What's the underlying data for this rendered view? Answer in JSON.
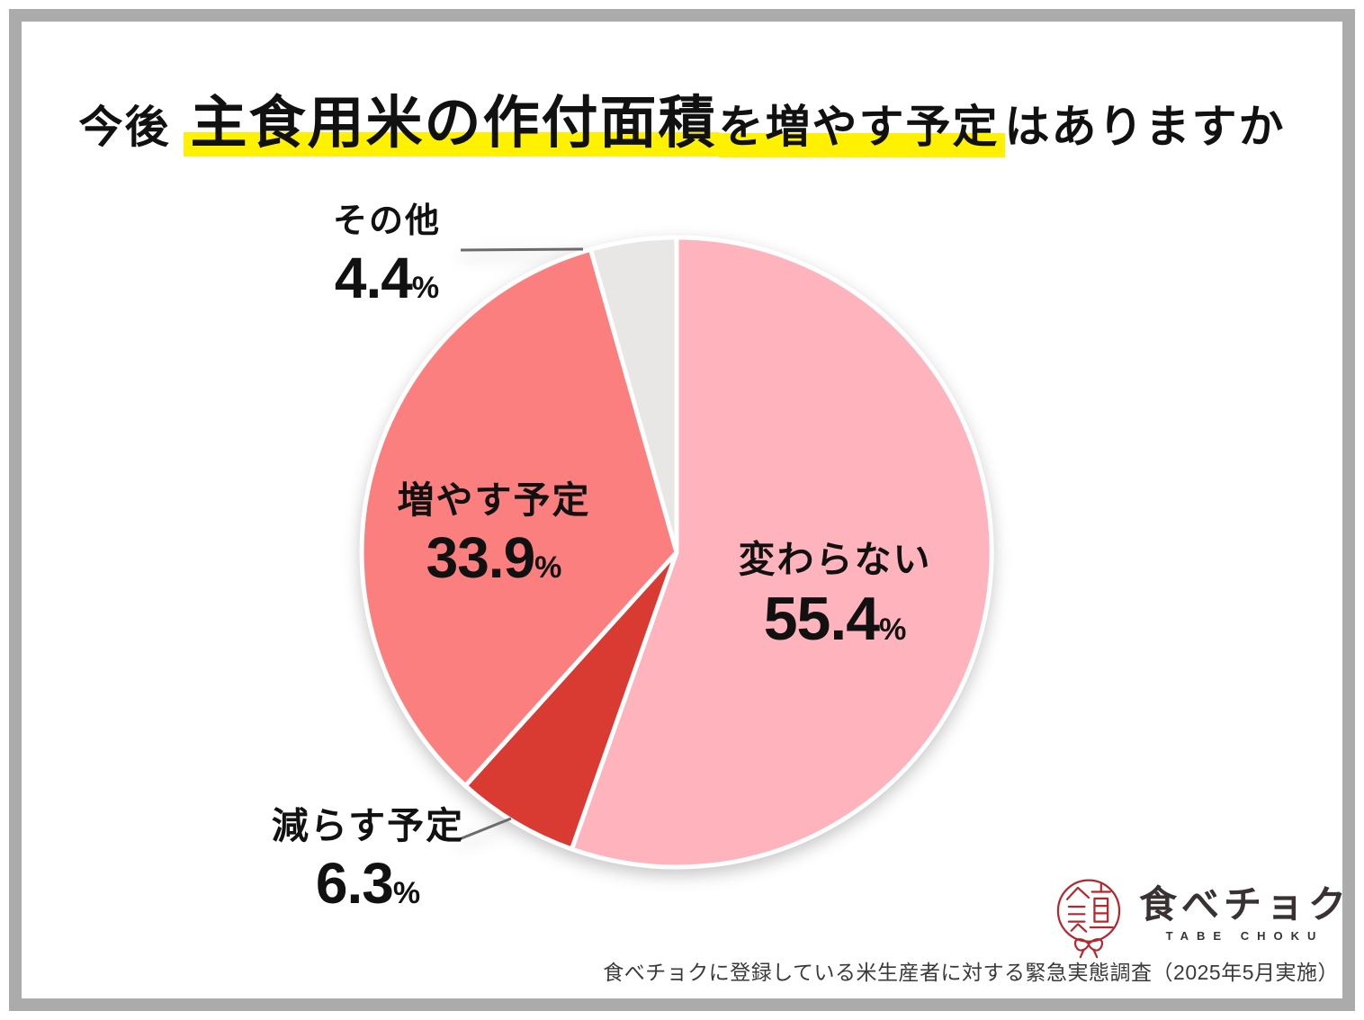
{
  "page": {
    "title": {
      "prefix": "今後",
      "highlight_large": "主食用米の作付面積",
      "highlight_small": "を増やす予定",
      "suffix": "はありますか"
    },
    "logo": {
      "brand_name": "食べチョク",
      "brand_romaji": "TABE CHOKU"
    },
    "source_note": "食べチョクに登録している米生産者に対する緊急実態調査（2025年5月実施）",
    "colors": {
      "highlight": "#FFF100",
      "frame": "#ABABAB",
      "brand_red": "#B5272D",
      "leader_line": "#6b6b6b"
    }
  },
  "chart_data": {
    "type": "pie",
    "title": "今後 主食用米の作付面積を増やす予定はありますか",
    "unit": "%",
    "start_angle_deg": -90,
    "direction": "clockwise",
    "legend_position": "none",
    "slices": [
      {
        "label": "変わらない",
        "value": 55.4,
        "color": "#FFB3BC",
        "label_position": "inside-right"
      },
      {
        "label": "減らす予定",
        "value": 6.3,
        "color": "#D93A31",
        "label_position": "outside-bottom-left"
      },
      {
        "label": "増やす予定",
        "value": 33.9,
        "color": "#FC7F7F",
        "label_position": "inside-left"
      },
      {
        "label": "その他",
        "value": 4.4,
        "color": "#E8E7E5",
        "label_position": "outside-top-left"
      }
    ]
  }
}
